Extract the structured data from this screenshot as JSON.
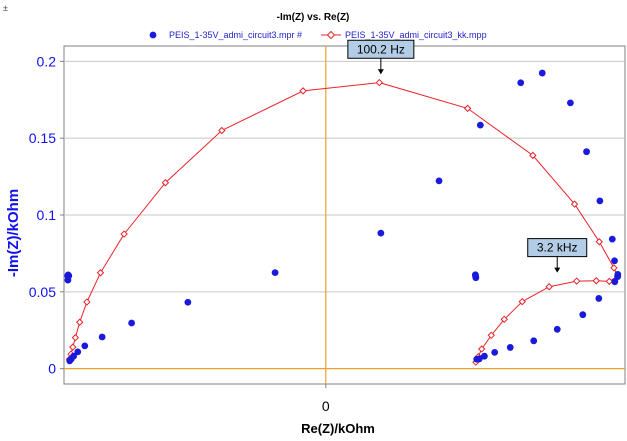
{
  "corner_mark": "±",
  "chart_data": {
    "type": "scatter",
    "title": "-Im(Z) vs. Re(Z)",
    "xlabel": "Re(Z)/kOhm",
    "ylabel": "-Im(Z)/kOhm",
    "xlim": [
      -0.175,
      0.2
    ],
    "ylim": [
      -0.01,
      0.21
    ],
    "x_ticks": [
      0
    ],
    "x_tick_labels": [
      "0"
    ],
    "y_ticks": [
      0,
      0.05,
      0.1,
      0.15,
      0.2
    ],
    "y_tick_labels": [
      "0",
      "0.05",
      "0.1",
      "0.15",
      "0.2"
    ],
    "grid": true,
    "legend_position": "top",
    "colors": {
      "measured": "#1a1adc",
      "fit": "#e8232a",
      "zero_axis": "#f0a030",
      "callout_bg": "#b4cde6"
    },
    "series": [
      {
        "name": "PEIS_1-35V_admi_circuit3.mpr #",
        "style": "dots",
        "x": [
          0.1952,
          0.193,
          0.1915,
          0.1832,
          0.1743,
          0.1635,
          0.1447,
          0.1303,
          0.1033,
          0.0757,
          0.0368,
          -0.0339,
          -0.0922,
          -0.1298,
          -0.1495,
          -0.1611,
          -0.1658,
          -0.1686,
          -0.1702,
          -0.1712,
          -0.1718,
          -0.1722,
          -0.1724,
          -0.1725,
          0.1951,
          0.1932,
          0.1825,
          0.1718,
          0.1547,
          0.139,
          0.1233,
          0.1129,
          0.106,
          0.1026,
          0.1009,
          0.1003,
          0.1001,
          0.1
        ],
        "y": [
          0.0613,
          0.0702,
          0.0843,
          0.1092,
          0.1412,
          0.173,
          0.1924,
          0.1861,
          0.1585,
          0.1222,
          0.0882,
          0.0625,
          0.0432,
          0.0297,
          0.0206,
          0.0148,
          0.0109,
          0.0081,
          0.0062,
          0.0051,
          0.0604,
          0.061,
          0.0576,
          0.0604,
          0.0599,
          0.0566,
          0.0457,
          0.0351,
          0.0256,
          0.0181,
          0.0138,
          0.0106,
          0.0081,
          0.0064,
          0.0061,
          0.0592,
          0.0602,
          0.0611
        ]
      },
      {
        "name": "PEIS_1-35V_admi_circuit3_kk.mpp",
        "style": "line-diamond",
        "x": [
          -0.1713,
          -0.1703,
          -0.1691,
          -0.1674,
          -0.1645,
          -0.1597,
          -0.1506,
          -0.1348,
          -0.1072,
          -0.0695,
          -0.0152,
          0.0358,
          0.0948,
          0.1384,
          0.1663,
          0.1828,
          0.1926,
          0.1951,
          0.1895,
          0.1808,
          0.1677,
          0.1493,
          0.1313,
          0.1193,
          0.1106,
          0.1042,
          0.1019,
          0.1003
        ],
        "y": [
          0.0062,
          0.0094,
          0.014,
          0.0202,
          0.0302,
          0.0434,
          0.0624,
          0.0876,
          0.121,
          0.155,
          0.1808,
          0.1862,
          0.1694,
          0.1388,
          0.1071,
          0.0826,
          0.0656,
          0.0602,
          0.0568,
          0.0572,
          0.057,
          0.0533,
          0.0436,
          0.0321,
          0.0217,
          0.0128,
          0.0078,
          0.0042
        ]
      }
    ],
    "annotations": [
      {
        "text": "100.2 Hz",
        "x": 0.0368,
        "y": 0.189
      },
      {
        "text": "3.2 kHz",
        "x": 0.1547,
        "y": 0.0599
      }
    ]
  }
}
